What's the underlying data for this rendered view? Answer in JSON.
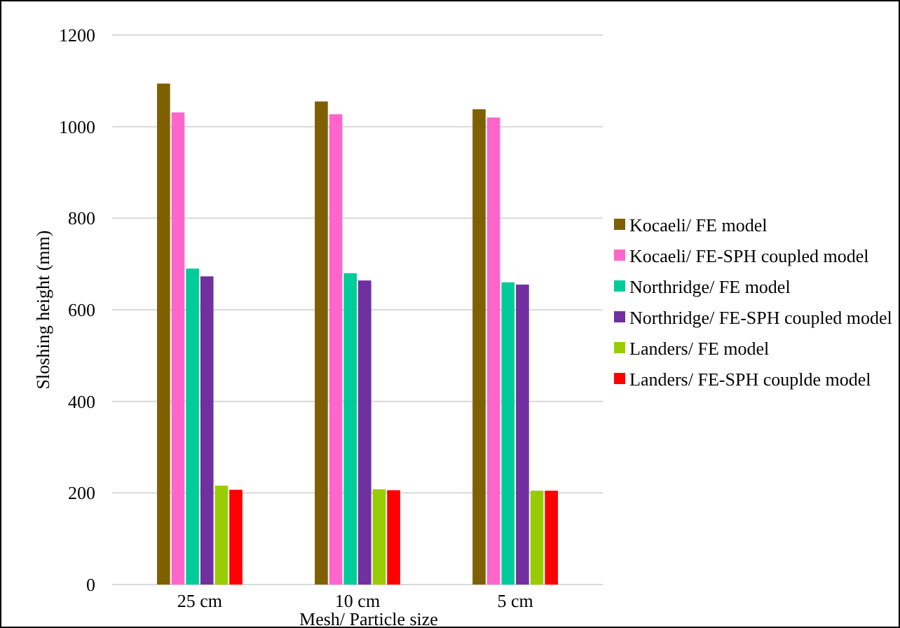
{
  "chart_data": {
    "type": "bar",
    "xlabel": "Mesh/ Particle size",
    "ylabel": "Sloshing height (mm)",
    "categories": [
      "25 cm",
      "10 cm",
      "5 cm"
    ],
    "series": [
      {
        "name": "Kocaeli/ FE model",
        "color": "#7f6000",
        "values": [
          1094,
          1055,
          1038
        ]
      },
      {
        "name": "Kocaeli/ FE-SPH coupled model",
        "color": "#ff66cc",
        "values": [
          1031,
          1027,
          1020
        ]
      },
      {
        "name": "Northridge/ FE model",
        "color": "#00cc99",
        "values": [
          690,
          680,
          660
        ]
      },
      {
        "name": "Northridge/ FE-SPH coupled model",
        "color": "#7030a0",
        "values": [
          673,
          664,
          655
        ]
      },
      {
        "name": "Landers/ FE model",
        "color": "#99cc00",
        "values": [
          216,
          208,
          205
        ]
      },
      {
        "name": "Landers/ FE-SPH couplde model",
        "color": "#ff0000",
        "values": [
          207,
          206,
          205
        ]
      }
    ],
    "ylim": [
      0,
      1200
    ],
    "yticks": [
      0,
      200,
      400,
      600,
      800,
      1000,
      1200
    ],
    "grid": "y",
    "legend": "right"
  }
}
